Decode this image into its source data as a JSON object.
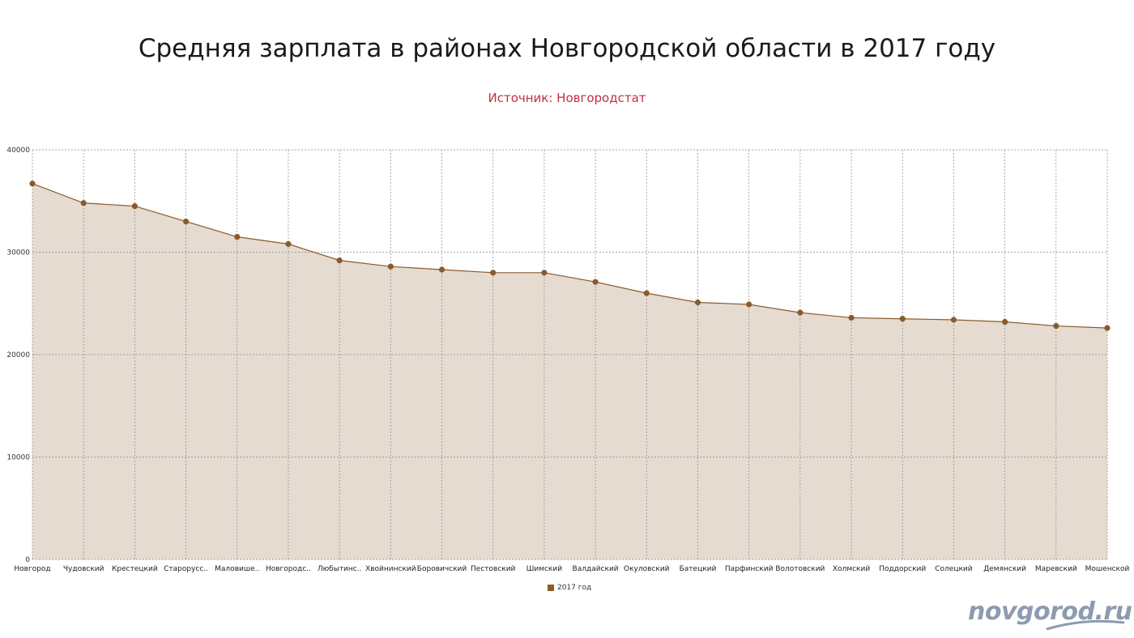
{
  "header": {
    "title": "Средняя зарплата в районах Новгородской области в 2017 году",
    "subtitle": "Источник: Новгородстат"
  },
  "brand": {
    "text": "novgorod.ru"
  },
  "colors": {
    "line": "#8b5a2b",
    "fill": "#e6dbd0",
    "subtitle": "#c0313e",
    "brand": "#8c9bb0",
    "grid": "#888888"
  },
  "chart_data": {
    "type": "area",
    "title": "Средняя зарплата в районах Новгородской области в 2017 году",
    "subtitle": "Источник: Новгородстат",
    "categories": [
      "Новгород",
      "Чудовский",
      "Крестецкий",
      "Старорусс..",
      "Маловише..",
      "Новгородс..",
      "Любытинс..",
      "Хвойнинский",
      "Боровичский",
      "Пестовский",
      "Шимский",
      "Валдайский",
      "Окуловский",
      "Батецкий",
      "Парфинский",
      "Волотовский",
      "Холмский",
      "Поддорский",
      "Солецкий",
      "Демянский",
      "Маревский",
      "Мошенской"
    ],
    "series": [
      {
        "name": "2017 год",
        "values": [
          36700,
          34800,
          34500,
          33000,
          31500,
          30800,
          29200,
          28600,
          28300,
          28000,
          28000,
          27100,
          26000,
          25100,
          24900,
          24100,
          23600,
          23500,
          23400,
          23200,
          22800,
          22600
        ]
      }
    ],
    "ylim": [
      0,
      40000
    ],
    "yticks": [
      "0",
      "10000",
      "20000",
      "30000",
      "40000"
    ],
    "grid": true,
    "legend": "bottom-center"
  }
}
